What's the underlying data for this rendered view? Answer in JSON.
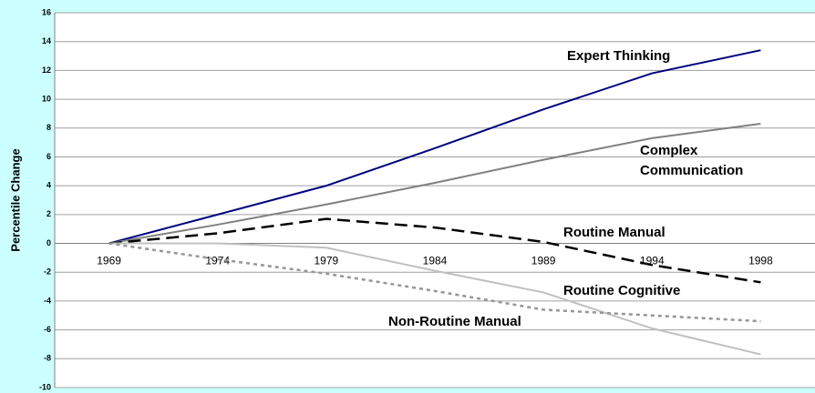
{
  "chart_data": {
    "type": "line",
    "y_label": "Percentile Change",
    "categories": [
      "1969",
      "1974",
      "1979",
      "1984",
      "1989",
      "1994",
      "1998"
    ],
    "series": [
      {
        "name": "Expert Thinking",
        "color": "#000080",
        "dash": "solid",
        "values": [
          0,
          2,
          4,
          6.6,
          9.3,
          11.8,
          13.4
        ]
      },
      {
        "name": "Complex Communication",
        "color": "#808080",
        "dash": "solid",
        "values": [
          0,
          1.3,
          2.7,
          4.2,
          5.8,
          7.3,
          8.3
        ]
      },
      {
        "name": "Routine Manual",
        "color": "#000000",
        "dash": "dashed",
        "values": [
          0,
          0.7,
          1.7,
          1.1,
          0.1,
          -1.5,
          -2.7
        ]
      },
      {
        "name": "Routine Cognitive",
        "color": "#c0c0c0",
        "dash": "solid",
        "values": [
          0,
          0,
          -0.3,
          -1.9,
          -3.4,
          -5.9,
          -7.7
        ]
      },
      {
        "name": "Non-Routine Manual",
        "color": "#969696",
        "dash": "dotted",
        "values": [
          0,
          -1.1,
          -2.1,
          -3.3,
          -4.6,
          -5.0,
          -5.4
        ]
      }
    ],
    "ylim": [
      -10,
      16
    ],
    "yticks": [
      -10,
      -8,
      -6,
      -4,
      -2,
      0,
      2,
      4,
      6,
      8,
      10,
      12,
      14,
      16
    ],
    "grid": true
  }
}
